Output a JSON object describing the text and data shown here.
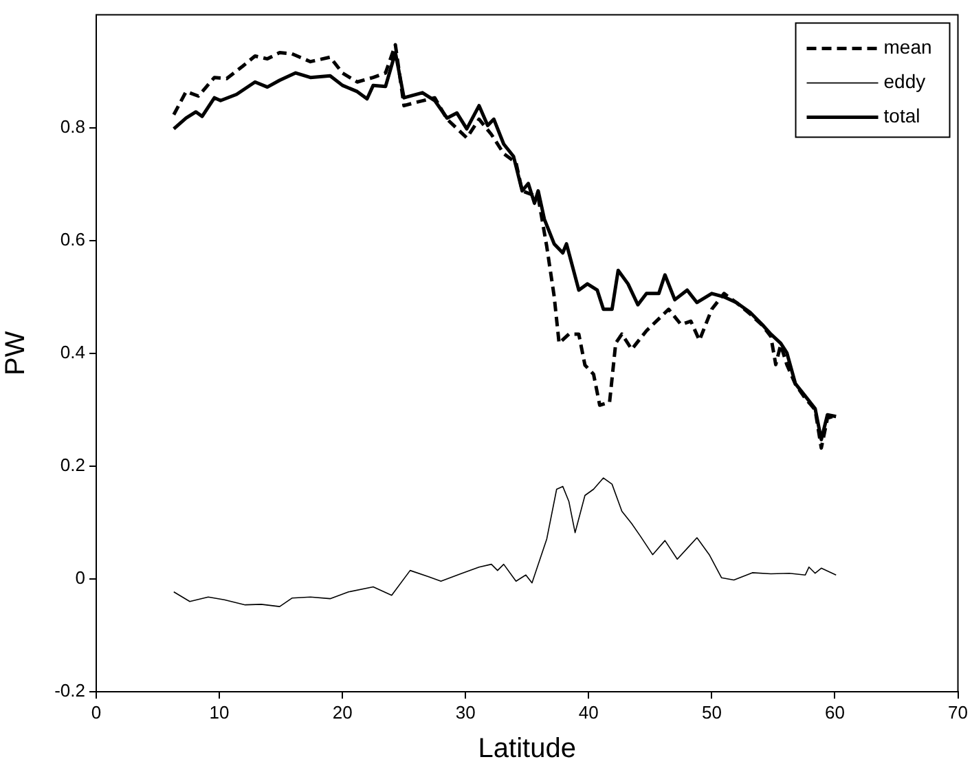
{
  "chart_data": {
    "type": "line",
    "xlabel": "Latitude",
    "ylabel": "PW",
    "xlim": [
      0,
      70
    ],
    "xticks": [
      0,
      10,
      20,
      30,
      40,
      50,
      60,
      70
    ],
    "ylim": [
      -0.2,
      1.0
    ],
    "yticks": [
      -0.2,
      0,
      0.2,
      0.4,
      0.6,
      0.8
    ],
    "grid": false,
    "legend": "top right",
    "marker": "none",
    "series": [
      {
        "name": "mean",
        "color": "#000000",
        "line_style": "dashed",
        "x": [
          6.3,
          7.3,
          8.3,
          9.6,
          10.6,
          11.9,
          12.9,
          13.9,
          14.9,
          15.9,
          17.4,
          19.0,
          20.0,
          21.2,
          22.5,
          23.5,
          24.3,
          25.0,
          26.0,
          27.5,
          28.5,
          30.1,
          31.1,
          32.1,
          33.1,
          34.1,
          34.6,
          35.9,
          36.6,
          37.2,
          37.6,
          38.4,
          39.2,
          39.7,
          40.4,
          40.9,
          41.7,
          42.2,
          42.7,
          43.5,
          44.7,
          46.5,
          47.5,
          48.3,
          49.0,
          50.0,
          51.0,
          52.0,
          53.1,
          54.1,
          54.8,
          55.2,
          55.6,
          56.1,
          56.8,
          57.6,
          58.4,
          58.9,
          59.4,
          60.1
        ],
        "values": [
          0.823,
          0.864,
          0.856,
          0.889,
          0.887,
          0.909,
          0.927,
          0.922,
          0.933,
          0.931,
          0.917,
          0.925,
          0.897,
          0.881,
          0.889,
          0.897,
          0.947,
          0.839,
          0.845,
          0.853,
          0.815,
          0.782,
          0.815,
          0.788,
          0.754,
          0.738,
          0.688,
          0.677,
          0.589,
          0.501,
          0.418,
          0.434,
          0.434,
          0.379,
          0.363,
          0.308,
          0.313,
          0.418,
          0.434,
          0.407,
          0.44,
          0.478,
          0.451,
          0.457,
          0.423,
          0.478,
          0.506,
          0.49,
          0.47,
          0.45,
          0.43,
          0.38,
          0.415,
          0.38,
          0.345,
          0.32,
          0.3,
          0.232,
          0.285,
          0.29
        ]
      },
      {
        "name": "eddy",
        "color": "#000000",
        "line_style": "solid",
        "x": [
          6.3,
          7.6,
          9.1,
          10.4,
          12.1,
          13.4,
          14.9,
          15.9,
          17.4,
          19.0,
          20.5,
          22.5,
          24.0,
          25.5,
          27.0,
          28.0,
          29.6,
          31.1,
          32.1,
          32.6,
          33.1,
          34.1,
          34.9,
          35.4,
          36.6,
          37.4,
          37.9,
          38.4,
          38.9,
          39.7,
          40.4,
          41.2,
          41.9,
          42.7,
          43.5,
          44.2,
          45.2,
          46.2,
          47.2,
          48.0,
          48.8,
          49.8,
          50.8,
          51.8,
          53.3,
          54.8,
          56.3,
          57.6,
          57.9,
          58.4,
          58.9,
          60.1
        ],
        "values": [
          -0.023,
          -0.04,
          -0.032,
          -0.037,
          -0.046,
          -0.045,
          -0.049,
          -0.034,
          -0.032,
          -0.035,
          -0.023,
          -0.014,
          -0.029,
          0.015,
          0.004,
          -0.004,
          0.009,
          0.021,
          0.026,
          0.015,
          0.026,
          -0.004,
          0.007,
          -0.007,
          0.071,
          0.159,
          0.164,
          0.137,
          0.082,
          0.148,
          0.159,
          0.179,
          0.168,
          0.12,
          0.098,
          0.076,
          0.043,
          0.068,
          0.035,
          0.054,
          0.073,
          0.043,
          0.002,
          -0.002,
          0.011,
          0.009,
          0.01,
          0.007,
          0.021,
          0.01,
          0.019,
          0.007
        ]
      },
      {
        "name": "total",
        "color": "#000000",
        "line_style": "solid",
        "x": [
          6.3,
          7.3,
          8.1,
          8.6,
          9.6,
          10.1,
          11.4,
          12.9,
          13.9,
          14.9,
          16.2,
          17.4,
          19.0,
          20.0,
          21.2,
          22.0,
          22.5,
          23.5,
          24.3,
          25.0,
          26.5,
          27.5,
          28.5,
          29.3,
          30.1,
          31.1,
          31.8,
          32.3,
          33.1,
          33.9,
          34.6,
          35.1,
          35.6,
          35.9,
          36.4,
          37.2,
          37.9,
          38.2,
          39.2,
          39.9,
          40.7,
          41.2,
          41.9,
          42.4,
          43.2,
          44.0,
          44.7,
          45.7,
          46.2,
          47.0,
          48.0,
          48.8,
          50.0,
          51.0,
          52.0,
          53.1,
          54.1,
          54.8,
          55.6,
          56.1,
          56.8,
          57.6,
          58.4,
          58.9,
          59.4,
          60.1
        ],
        "values": [
          0.798,
          0.817,
          0.828,
          0.82,
          0.853,
          0.848,
          0.859,
          0.881,
          0.872,
          0.884,
          0.897,
          0.889,
          0.892,
          0.875,
          0.864,
          0.851,
          0.875,
          0.873,
          0.933,
          0.853,
          0.862,
          0.848,
          0.817,
          0.826,
          0.798,
          0.839,
          0.804,
          0.815,
          0.771,
          0.749,
          0.688,
          0.701,
          0.666,
          0.688,
          0.638,
          0.594,
          0.578,
          0.594,
          0.512,
          0.523,
          0.512,
          0.478,
          0.478,
          0.547,
          0.523,
          0.486,
          0.506,
          0.506,
          0.539,
          0.495,
          0.512,
          0.49,
          0.506,
          0.5,
          0.49,
          0.473,
          0.451,
          0.434,
          0.418,
          0.401,
          0.346,
          0.324,
          0.302,
          0.247,
          0.291,
          0.288
        ]
      }
    ]
  }
}
